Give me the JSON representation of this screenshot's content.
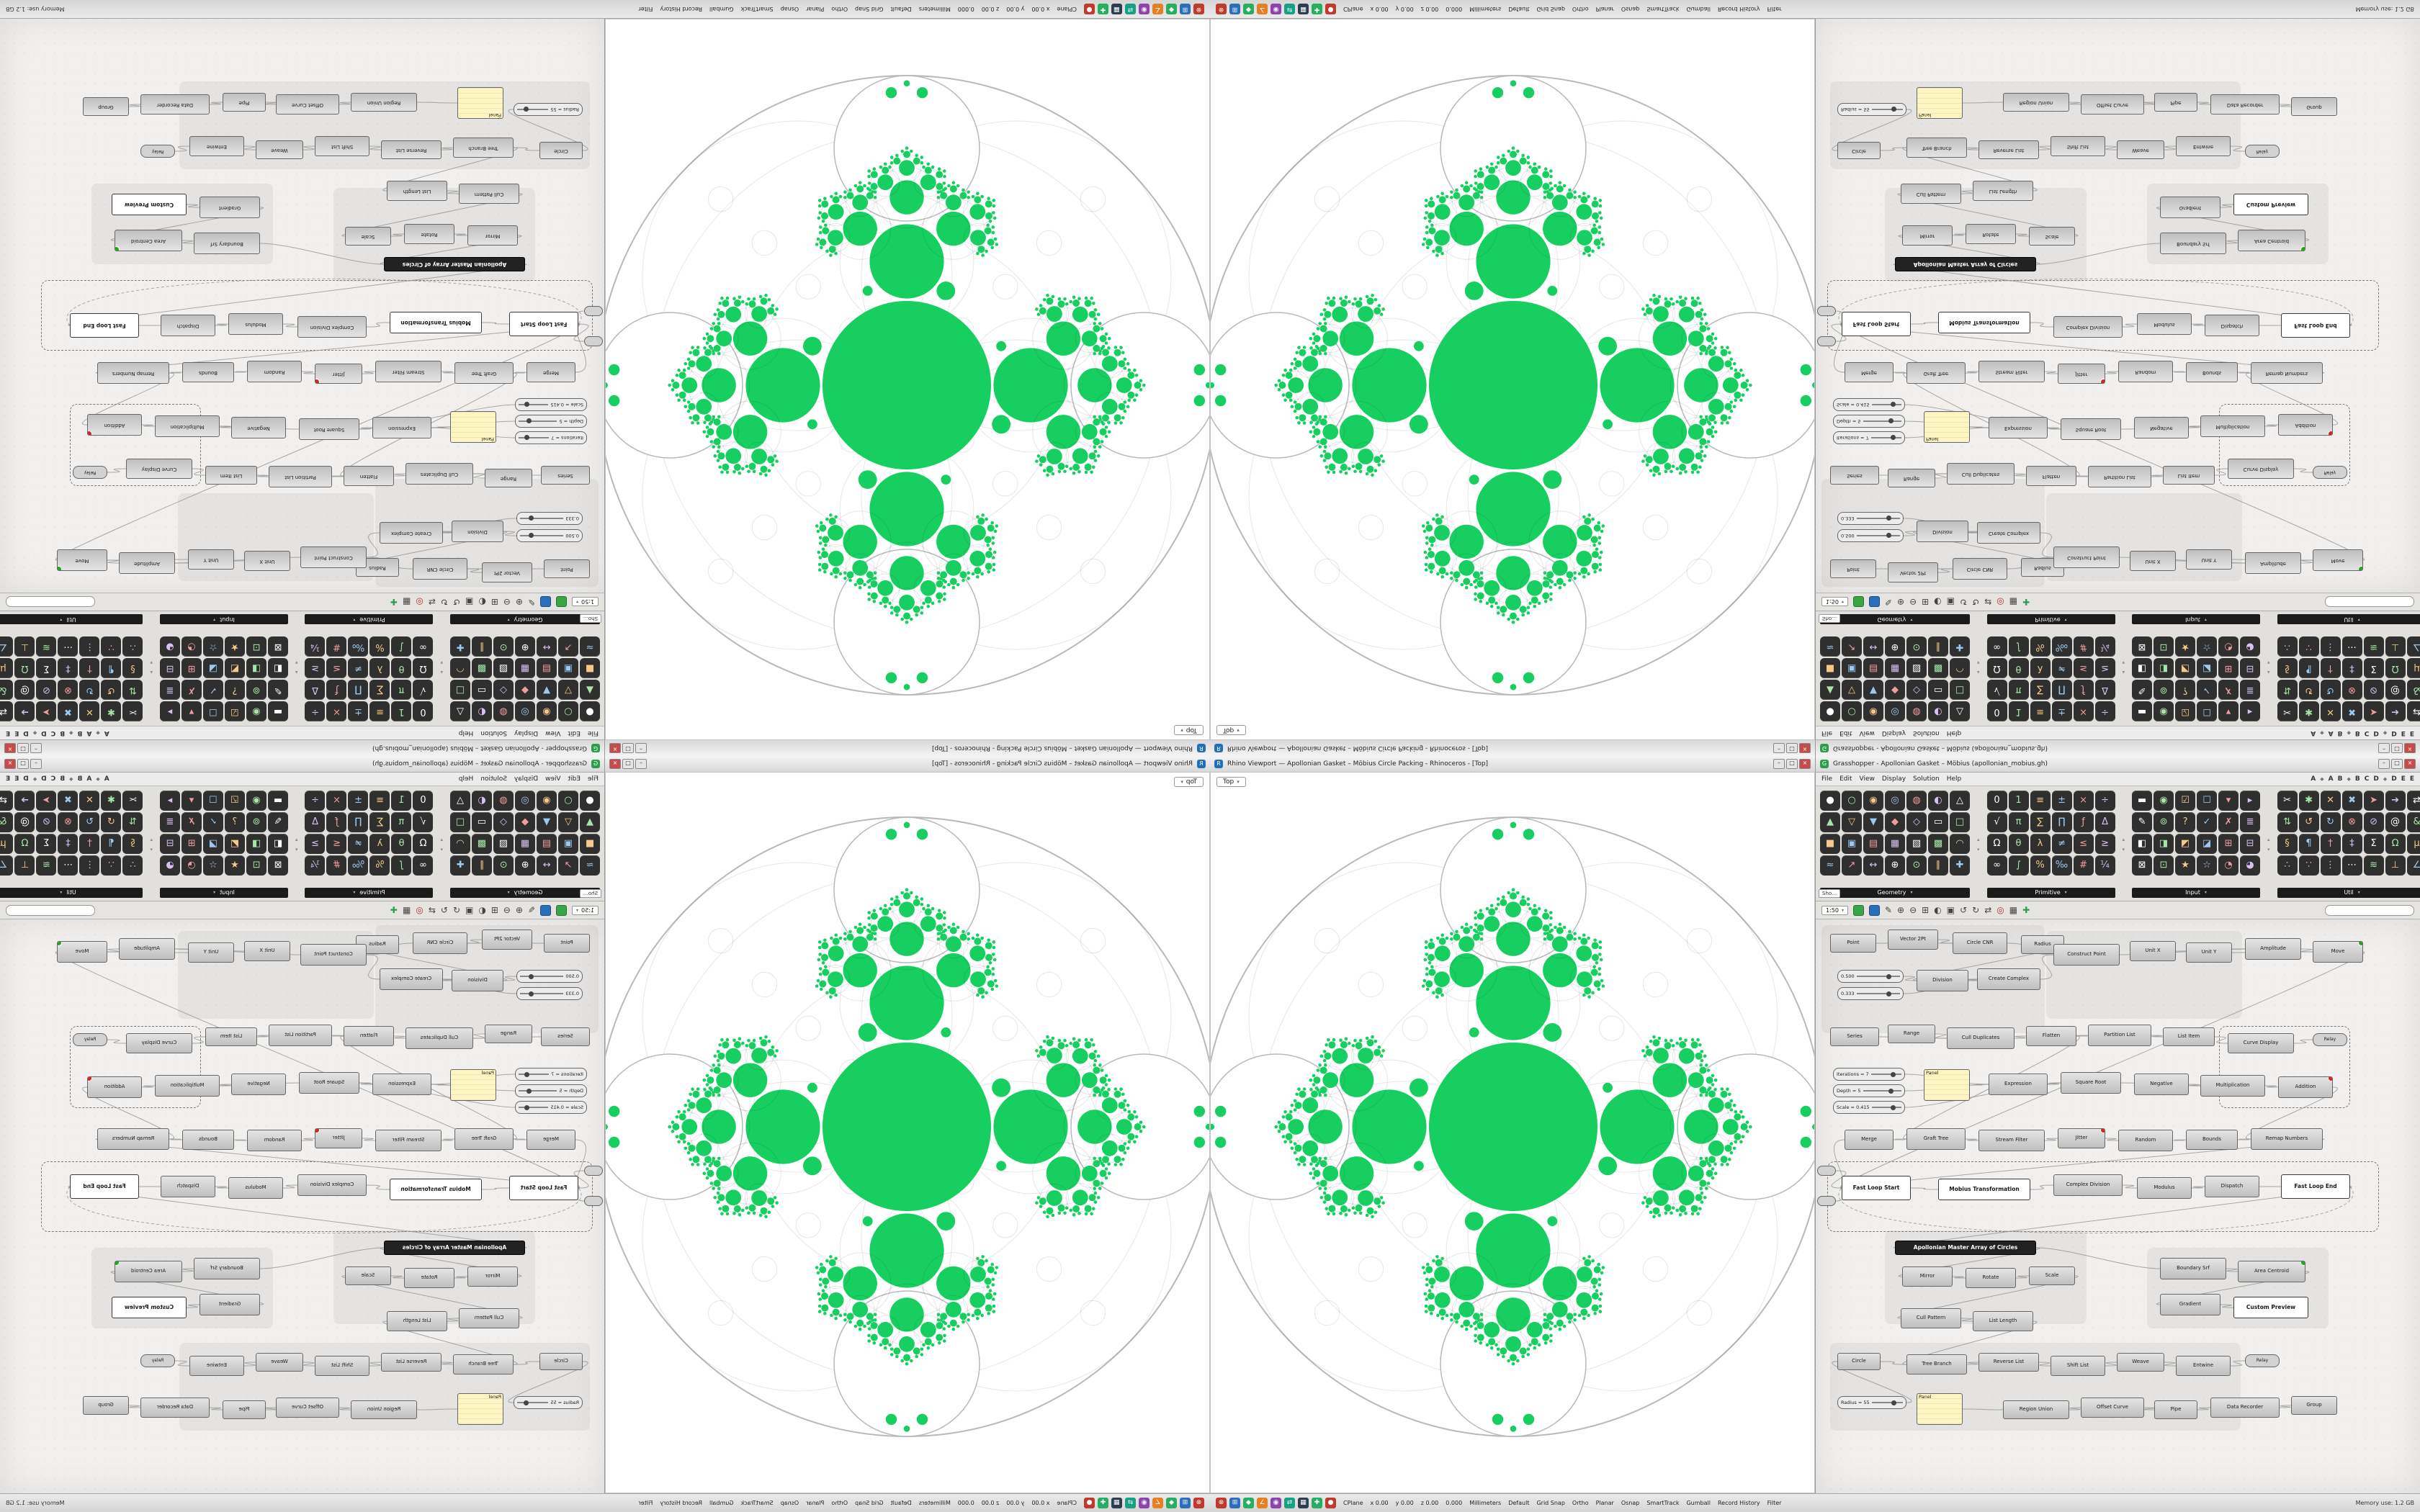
{
  "window": {
    "gh_title": "Grasshopper - Apollonian Gasket – Möbius (apollonian_mobius.gh)",
    "rhino_title": "Rhino Viewport — Apollonian Gasket – Möbius Circle Packing - Rhinoceros - [Top]",
    "viewport_tab": "Top",
    "minimize": "–",
    "maximize": "□",
    "close": "×"
  },
  "menubar": {
    "items": [
      "File",
      "Edit",
      "View",
      "Display",
      "Solution",
      "Help"
    ],
    "tabs": [
      "A",
      "◆",
      "A",
      "B",
      "◆",
      "B",
      "C",
      "D",
      "◆",
      "D",
      "E",
      "E"
    ]
  },
  "palette": {
    "show_button": "Sho…",
    "sections": [
      {
        "label": "Geometry",
        "glyphs": "●○◉◎◍◐△▲▽▼◆◇▭□■▣▤▦▧▩◠≈↗↔⊕⊙∥✚"
      },
      {
        "label": "Primitive",
        "glyphs": "01≡±×÷√π∑∏ƒΔΩθλ≠≤≥∞∫%‰#¼"
      },
      {
        "label": "Input",
        "glyphs": "▬◉☑☐▾▸✎⊚?✓✗≣◧◨◩◪⊞⊟⊠⊡★☆◔◕"
      },
      {
        "label": "Util",
        "glyphs": "✂✱✕✖➤➔⇄⇅↺↻⊗⊘@&§¶†‡ΣΩμ∴∵⋮⋯≋⊥∠"
      }
    ]
  },
  "canvas_toolbar": {
    "zoom": "1:50",
    "chips": [
      "#3aa547",
      "#2a6fbb"
    ],
    "icons": [
      [
        "✎",
        "#444"
      ],
      [
        "⊕",
        "#444"
      ],
      [
        "⊖",
        "#444"
      ],
      [
        "⊞",
        "#444"
      ],
      [
        "◐",
        "#444"
      ],
      [
        "▣",
        "#444"
      ],
      [
        "↺",
        "#444"
      ],
      [
        "↻",
        "#444"
      ],
      [
        "⇄",
        "#444"
      ],
      [
        "◎",
        "#b03030"
      ],
      [
        "▦",
        "#444"
      ],
      [
        "✚",
        "#2a9d4e"
      ]
    ]
  },
  "statusbar": {
    "icons": [
      [
        "⊗",
        "#c0392b"
      ],
      [
        "⊞",
        "#2a6fbb"
      ],
      [
        "◆",
        "#27ae60"
      ],
      [
        "∠",
        "#e67e22"
      ],
      [
        "◉",
        "#8e44ad"
      ],
      [
        "⇄",
        "#16a085"
      ],
      [
        "▦",
        "#2c3e50"
      ],
      [
        "✚",
        "#27ae60"
      ],
      [
        "●",
        "#c0392b"
      ]
    ],
    "fields": [
      "CPlane",
      "x 0.00",
      "y 0.00",
      "z 0.00",
      "0.000",
      "Millimeters",
      "Default",
      "Grid Snap",
      "Ortho",
      "Planar",
      "Osnap",
      "SmartTrack",
      "Gumball",
      "Record History",
      "Filter"
    ],
    "memory": "Memory use: 1.2 GB"
  },
  "fractal": {
    "green": "#17cf60",
    "outline": "#b9b9b9",
    "lace": "#00000019",
    "R": 430,
    "center_r": 0.272,
    "tip_r": 0.235,
    "tip_d": 0.765,
    "spray_d": 0.4,
    "spray_r": 0.12,
    "ratio": 0.46,
    "spread": 55,
    "depth": 4
  },
  "canvas": {
    "groups": [
      [
        8,
        8,
        310,
        150
      ],
      [
        320,
        16,
        272,
        122
      ],
      [
        96,
        432,
        280,
        130
      ],
      [
        20,
        588,
        570,
        122
      ],
      [
        460,
        456,
        252,
        112
      ]
    ],
    "dashed_groups": [
      [
        16,
        336,
        764,
        96
      ],
      [
        560,
        148,
        180,
        112
      ]
    ],
    "nodes": [
      [
        20,
        20,
        64,
        26,
        "Point",
        "n"
      ],
      [
        100,
        14,
        70,
        28,
        "Vector 2Pt",
        "n"
      ],
      [
        190,
        18,
        76,
        30,
        "Circle CNR",
        "n"
      ],
      [
        285,
        22,
        60,
        26,
        "Radius",
        "n"
      ],
      [
        30,
        70,
        92,
        18,
        "0.500",
        "s"
      ],
      [
        30,
        94,
        92,
        18,
        "0.333",
        "s"
      ],
      [
        140,
        70,
        72,
        30,
        "Division",
        "n"
      ],
      [
        224,
        68,
        88,
        30,
        "Create Complex",
        "n"
      ],
      [
        330,
        34,
        92,
        30,
        "Construct Point",
        "n"
      ],
      [
        436,
        30,
        64,
        28,
        "Unit X",
        "n"
      ],
      [
        514,
        32,
        64,
        28,
        "Unit Y",
        "n"
      ],
      [
        596,
        26,
        78,
        30,
        "Amplitude",
        "n"
      ],
      [
        690,
        30,
        70,
        30,
        "Move",
        "n",
        "o"
      ],
      [
        20,
        150,
        68,
        26,
        "Series",
        "n"
      ],
      [
        100,
        146,
        66,
        26,
        "Range",
        "n"
      ],
      [
        182,
        150,
        94,
        30,
        "Cull Duplicates",
        "n"
      ],
      [
        292,
        148,
        70,
        28,
        "Flatten",
        "n"
      ],
      [
        378,
        146,
        88,
        30,
        "Partition List",
        "n"
      ],
      [
        482,
        150,
        72,
        26,
        "List Item",
        "n"
      ],
      [
        572,
        158,
        92,
        28,
        "Curve Display",
        "n"
      ],
      [
        690,
        158,
        48,
        18,
        "Relay",
        "r"
      ],
      [
        24,
        206,
        100,
        18,
        "Iterations = 7",
        "s"
      ],
      [
        24,
        229,
        100,
        18,
        "Depth = 5",
        "s"
      ],
      [
        24,
        252,
        100,
        18,
        "Scale = 0.415",
        "s"
      ],
      [
        150,
        208,
        64,
        44,
        "Panel",
        "p"
      ],
      [
        240,
        214,
        82,
        30,
        "Expression",
        "n"
      ],
      [
        340,
        212,
        84,
        30,
        "Square Root",
        "n"
      ],
      [
        442,
        214,
        76,
        30,
        "Negative",
        "n"
      ],
      [
        534,
        216,
        90,
        30,
        "Multiplication",
        "n"
      ],
      [
        642,
        218,
        76,
        30,
        "Addition",
        "n",
        "e"
      ],
      [
        40,
        292,
        68,
        28,
        "Merge",
        "n"
      ],
      [
        126,
        290,
        82,
        30,
        "Graft Tree",
        "n"
      ],
      [
        226,
        292,
        92,
        30,
        "Stream Filter",
        "n"
      ],
      [
        336,
        290,
        66,
        28,
        "Jitter",
        "n",
        "e"
      ],
      [
        420,
        292,
        76,
        30,
        "Random",
        "n"
      ],
      [
        514,
        292,
        72,
        28,
        "Bounds",
        "n"
      ],
      [
        604,
        290,
        100,
        30,
        "Remap Numbers",
        "n"
      ],
      [
        36,
        356,
        96,
        34,
        "Fast Loop Start",
        "w"
      ],
      [
        170,
        360,
        128,
        30,
        "Mobius Transformation",
        "w"
      ],
      [
        330,
        354,
        96,
        30,
        "Complex Division",
        "n"
      ],
      [
        446,
        358,
        76,
        30,
        "Modulus",
        "n"
      ],
      [
        540,
        356,
        76,
        30,
        "Dispatch",
        "n"
      ],
      [
        646,
        354,
        96,
        34,
        "Fast Loop End",
        "w"
      ],
      [
        110,
        446,
        196,
        20,
        "Apollonian Master Array of Circles",
        "k"
      ],
      [
        120,
        482,
        70,
        28,
        "Mirror",
        "n"
      ],
      [
        208,
        484,
        70,
        28,
        "Rotate",
        "n"
      ],
      [
        296,
        482,
        64,
        26,
        "Scale",
        "n"
      ],
      [
        478,
        470,
        92,
        30,
        "Boundary Srf",
        "n"
      ],
      [
        586,
        474,
        94,
        30,
        "Area Centroid",
        "n",
        "o"
      ],
      [
        478,
        520,
        84,
        30,
        "Gradient",
        "n"
      ],
      [
        580,
        524,
        104,
        30,
        "Custom Preview",
        "w"
      ],
      [
        118,
        540,
        84,
        28,
        "Cull Pattern",
        "n"
      ],
      [
        218,
        544,
        84,
        28,
        "List Length",
        "n"
      ],
      [
        30,
        602,
        60,
        24,
        "Circle",
        "n"
      ],
      [
        126,
        604,
        84,
        28,
        "Tree Branch",
        "n"
      ],
      [
        226,
        602,
        84,
        26,
        "Reverse List",
        "n"
      ],
      [
        326,
        606,
        76,
        28,
        "Shift List",
        "n"
      ],
      [
        418,
        602,
        66,
        26,
        "Weave",
        "n"
      ],
      [
        500,
        606,
        76,
        28,
        "Entwine",
        "n"
      ],
      [
        596,
        604,
        48,
        18,
        "Relay",
        "r"
      ],
      [
        30,
        662,
        96,
        18,
        "Radius = 55",
        "s"
      ],
      [
        140,
        658,
        64,
        44,
        "Panel",
        "p"
      ],
      [
        260,
        668,
        92,
        26,
        "Region Union",
        "n"
      ],
      [
        368,
        664,
        88,
        28,
        "Offset Curve",
        "n"
      ],
      [
        470,
        668,
        60,
        26,
        "Pipe",
        "n"
      ],
      [
        548,
        664,
        96,
        28,
        "Data Recorder",
        "n"
      ],
      [
        660,
        662,
        64,
        26,
        "Group",
        "n"
      ],
      [
        2,
        342,
        26,
        14,
        "",
        "r"
      ],
      [
        2,
        384,
        26,
        14,
        "",
        "r"
      ]
    ],
    "wires": [
      [
        0,
        2
      ],
      [
        1,
        2
      ],
      [
        2,
        8
      ],
      [
        3,
        6
      ],
      [
        4,
        6
      ],
      [
        5,
        7
      ],
      [
        6,
        7
      ],
      [
        7,
        8
      ],
      [
        8,
        11
      ],
      [
        9,
        11
      ],
      [
        10,
        12
      ],
      [
        11,
        12
      ],
      [
        13,
        15
      ],
      [
        14,
        15
      ],
      [
        15,
        16
      ],
      [
        16,
        17
      ],
      [
        17,
        18
      ],
      [
        18,
        19
      ],
      [
        19,
        20
      ],
      [
        16,
        31
      ],
      [
        21,
        25
      ],
      [
        22,
        25
      ],
      [
        23,
        26
      ],
      [
        24,
        25
      ],
      [
        25,
        26
      ],
      [
        26,
        28
      ],
      [
        27,
        28
      ],
      [
        28,
        29
      ],
      [
        29,
        36
      ],
      [
        30,
        31
      ],
      [
        31,
        32
      ],
      [
        32,
        33
      ],
      [
        33,
        34
      ],
      [
        34,
        35
      ],
      [
        35,
        36
      ],
      [
        12,
        37
      ],
      [
        36,
        37
      ],
      [
        67,
        37
      ],
      [
        68,
        30
      ],
      [
        37,
        38
      ],
      [
        38,
        39
      ],
      [
        39,
        40
      ],
      [
        40,
        41
      ],
      [
        41,
        42
      ],
      [
        42,
        37,
        2
      ],
      [
        42,
        43
      ],
      [
        43,
        44
      ],
      [
        43,
        47
      ],
      [
        44,
        45
      ],
      [
        45,
        46
      ],
      [
        46,
        51
      ],
      [
        47,
        48
      ],
      [
        48,
        49
      ],
      [
        49,
        50
      ],
      [
        51,
        52
      ],
      [
        52,
        54
      ],
      [
        53,
        54
      ],
      [
        54,
        55
      ],
      [
        55,
        56
      ],
      [
        56,
        57
      ],
      [
        57,
        58
      ],
      [
        58,
        59
      ],
      [
        60,
        53
      ],
      [
        61,
        62
      ],
      [
        62,
        63
      ],
      [
        63,
        64
      ],
      [
        64,
        65
      ],
      [
        65,
        66
      ]
    ]
  }
}
